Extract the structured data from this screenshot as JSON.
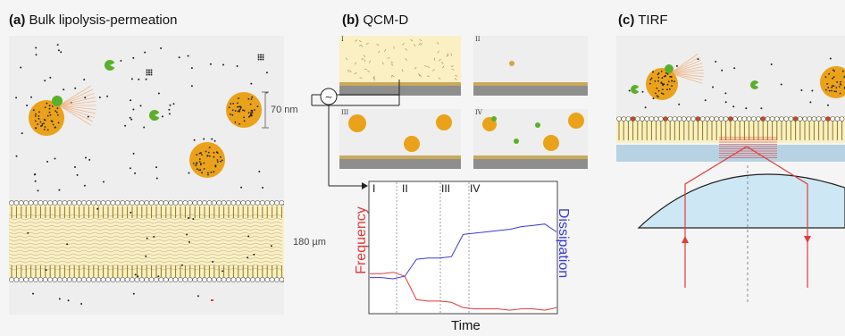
{
  "panels": {
    "a": {
      "letter": "(a)",
      "title": "Bulk lipolysis-permeation",
      "size_label_particle": "70 nm",
      "size_label_membrane": "180 µm"
    },
    "b": {
      "letter": "(b)",
      "title": "QCM-D",
      "stages": [
        "I",
        "II",
        "III",
        "IV"
      ],
      "plot": {
        "xlabel": "Time",
        "ylabel_left": "Frequency",
        "ylabel_right": "Dissipation",
        "phases": [
          "I",
          "II",
          "III",
          "IV"
        ]
      },
      "oscillator_symbol": "~"
    },
    "c": {
      "letter": "(c)",
      "title": "TIRF"
    }
  },
  "colors": {
    "particle": "#eaa21a",
    "enzyme": "#5ab02a",
    "membrane_band": "#fbf0c4",
    "tail": "#8a7a1a",
    "frequency": "#e23b3b",
    "dissipation": "#3a3ad8",
    "prism": "#cde8f4"
  },
  "chart_data": {
    "type": "line",
    "title": "",
    "xlabel": "Time",
    "ylabel": "Frequency",
    "y2label": "Dissipation",
    "phases": [
      "I",
      "II",
      "III",
      "IV"
    ],
    "series": [
      {
        "name": "Frequency",
        "y": [
          0.3,
          0.3,
          0.31,
          0.28,
          0.1,
          0.09,
          0.09,
          0.08,
          0.04,
          0.03,
          0.03,
          0.03,
          0.02,
          0.03,
          0.03,
          0.02,
          0.04
        ]
      },
      {
        "name": "Dissipation",
        "y": [
          0.27,
          0.27,
          0.26,
          0.28,
          0.41,
          0.42,
          0.42,
          0.43,
          0.6,
          0.61,
          0.62,
          0.63,
          0.64,
          0.66,
          0.67,
          0.68,
          0.62
        ]
      }
    ]
  }
}
